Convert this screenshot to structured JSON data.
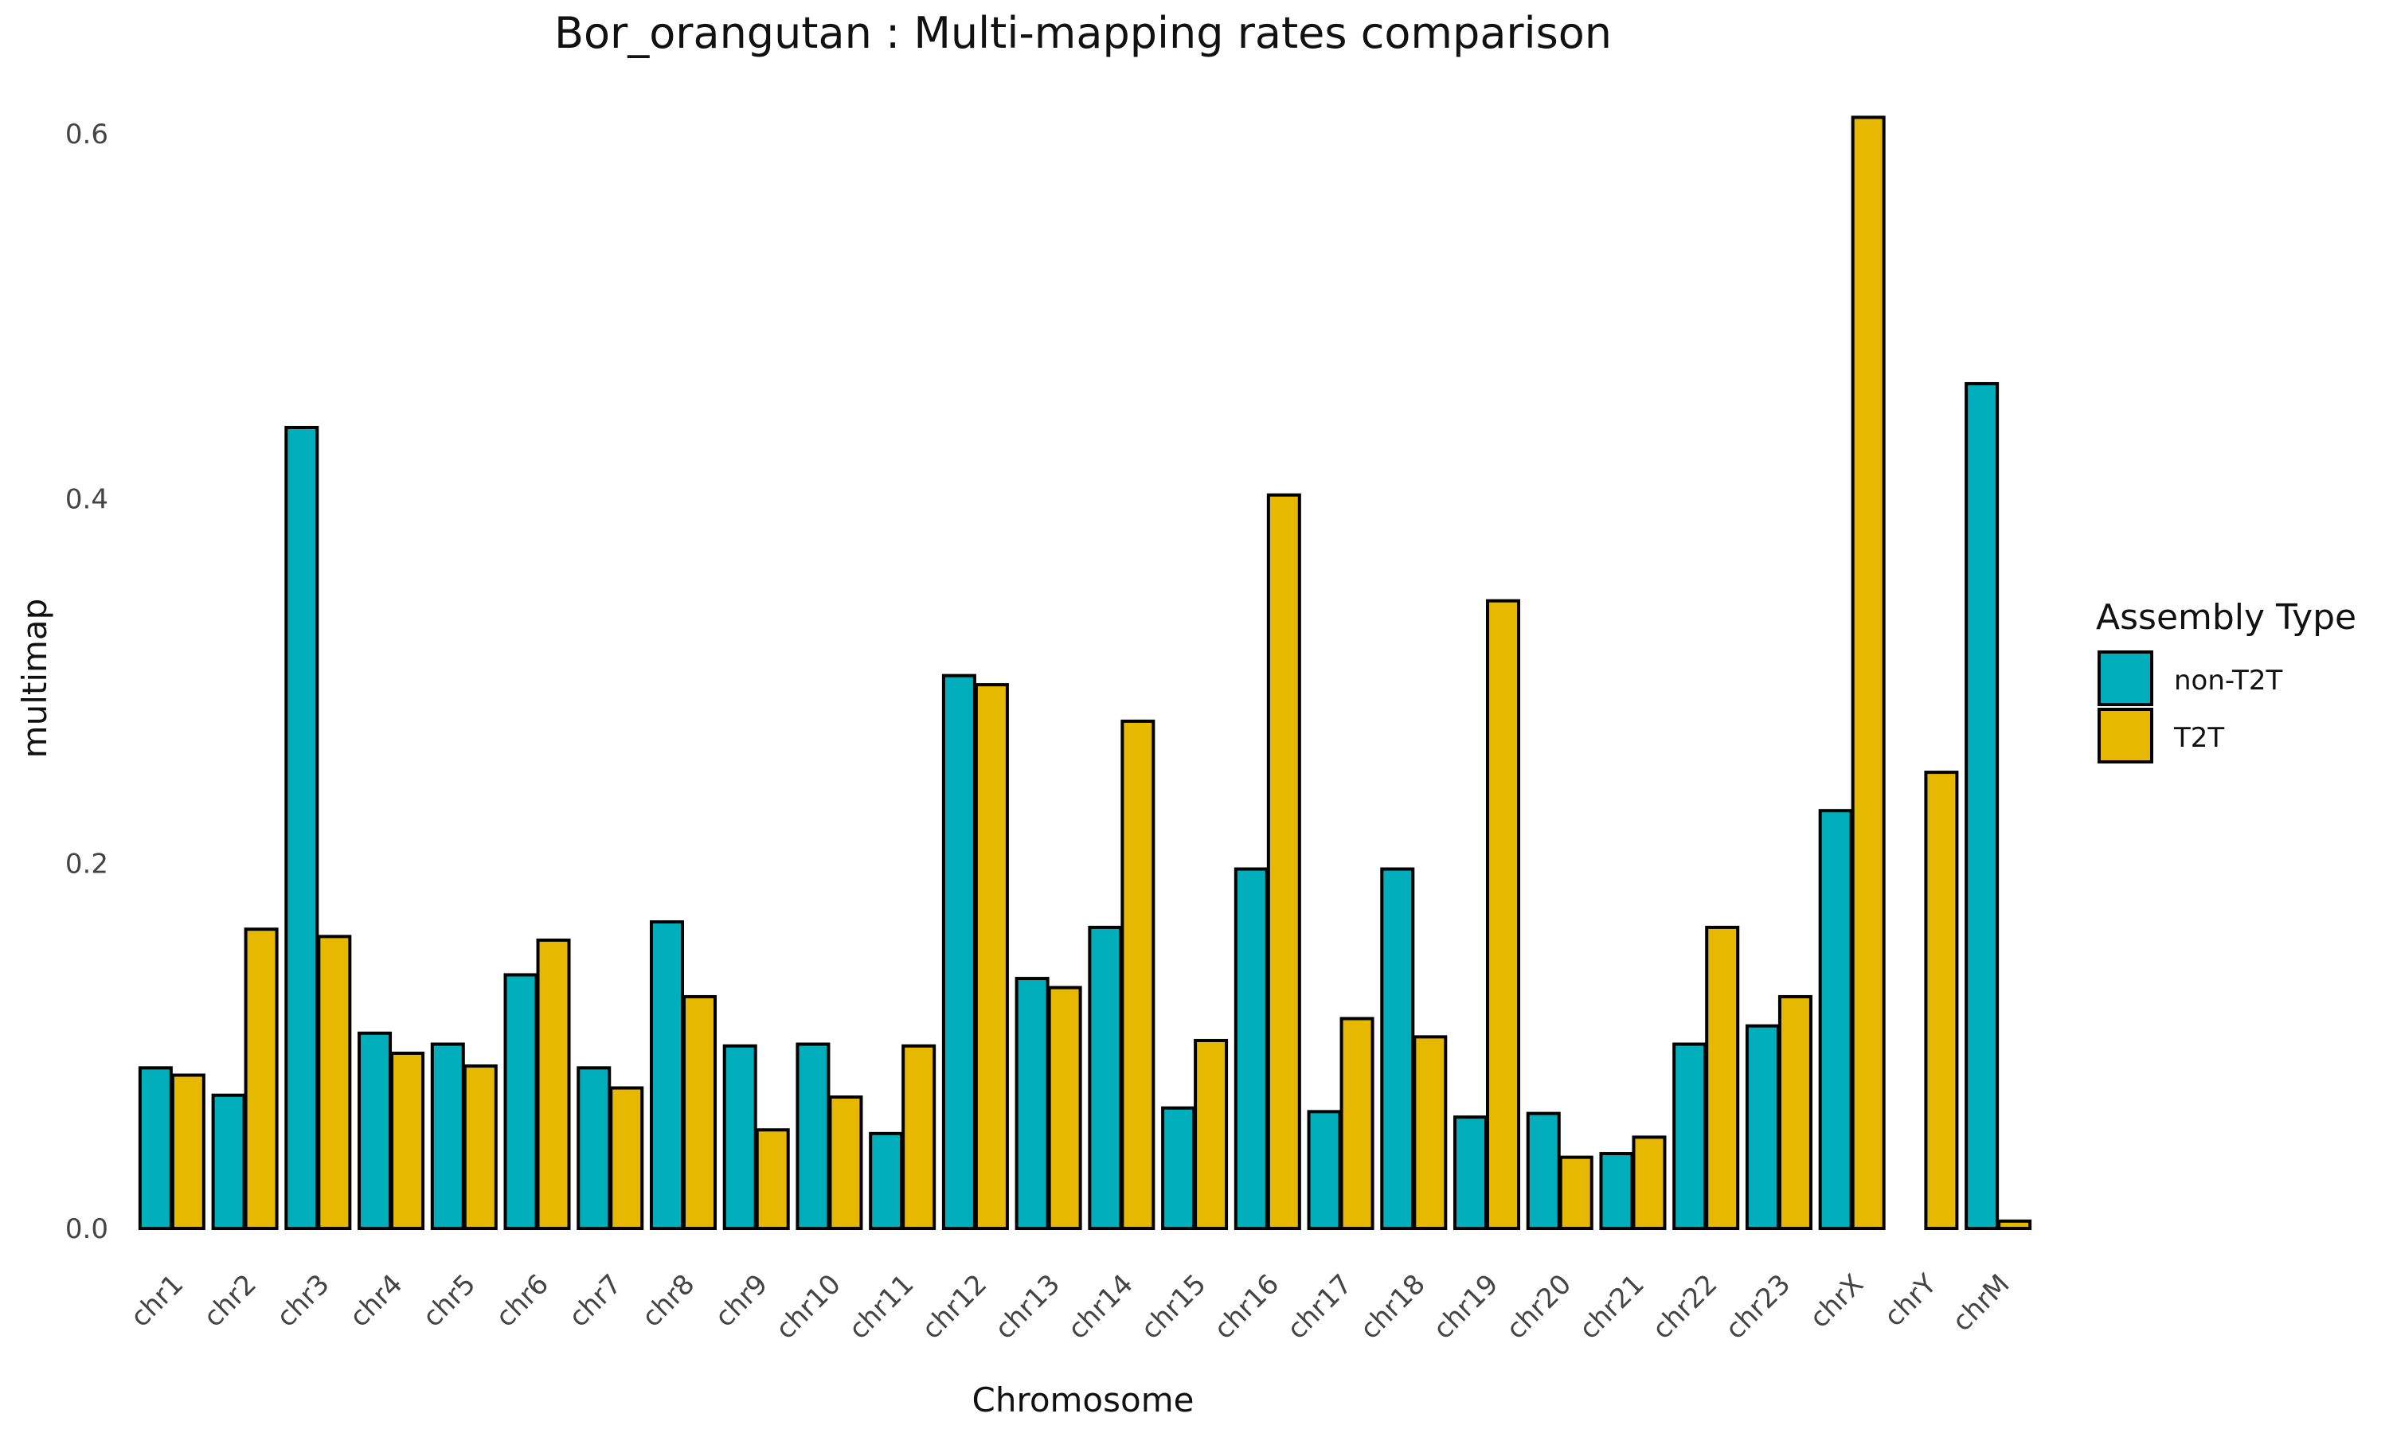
{
  "chart_data": {
    "type": "bar",
    "title": "Bor_orangutan : Multi-mapping rates comparison",
    "xlabel": "Chromosome",
    "ylabel": "multimap",
    "ylim": [
      0,
      0.61
    ],
    "yticks": [
      "0.0",
      "0.2",
      "0.4",
      "0.6"
    ],
    "grid": false,
    "legend_placement": "right",
    "legend_title": "Assembly Type",
    "categories": [
      "chr1",
      "chr2",
      "chr3",
      "chr4",
      "chr5",
      "chr6",
      "chr7",
      "chr8",
      "chr9",
      "chr10",
      "chr11",
      "chr12",
      "chr13",
      "chr14",
      "chr15",
      "chr16",
      "chr17",
      "chr18",
      "chr19",
      "chr20",
      "chr21",
      "chr22",
      "chr23",
      "chrX",
      "chrY",
      "chrM"
    ],
    "series": [
      {
        "name": "non-T2T",
        "color": "#00AFBB",
        "values": [
          0.088,
          0.073,
          0.439,
          0.107,
          0.101,
          0.139,
          0.088,
          0.168,
          0.1,
          0.101,
          0.052,
          0.303,
          0.137,
          0.165,
          0.066,
          0.197,
          0.064,
          0.197,
          0.061,
          0.063,
          0.041,
          0.101,
          0.111,
          0.229,
          0.0,
          0.463
        ]
      },
      {
        "name": "T2T",
        "color": "#E7B800",
        "values": [
          0.084,
          0.164,
          0.16,
          0.096,
          0.089,
          0.158,
          0.077,
          0.127,
          0.054,
          0.072,
          0.1,
          0.298,
          0.132,
          0.278,
          0.103,
          0.402,
          0.115,
          0.105,
          0.344,
          0.039,
          0.05,
          0.165,
          0.127,
          0.609,
          0.25,
          0.004
        ]
      }
    ]
  }
}
